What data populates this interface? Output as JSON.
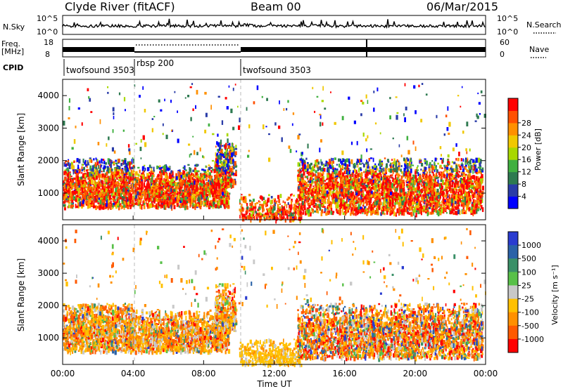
{
  "header": {
    "station": "Clyde River (fitACF)",
    "beam": "Beam 00",
    "date": "06/Mar/2015"
  },
  "strips": {
    "nsky_label": "N.Sky",
    "nsky_ticks": [
      "10^5",
      "10^0"
    ],
    "nsearch_label": "N.Search",
    "freq_label": "Freq.",
    "freq_unit": "[MHz]",
    "freq_ticks": [
      "18",
      "8"
    ],
    "nave_ticks": [
      "60",
      "0"
    ],
    "nave_label": "Nave",
    "cpid_label": "CPID",
    "cpid_segments": [
      {
        "label": "twofsound 3503",
        "start_hour": 0
      },
      {
        "label": "rbsp 200",
        "start_hour": 4
      },
      {
        "label": "twofsound 3503",
        "start_hour": 10
      }
    ]
  },
  "chart_data": [
    {
      "type": "heatmap",
      "name": "power-panel",
      "xlabel": "",
      "ylabel": "Slant Range [km]",
      "x_unit": "hours UT",
      "xlim": [
        0,
        24
      ],
      "ylim": [
        180,
        4500
      ],
      "yticks": [
        1000,
        2000,
        3000,
        4000
      ],
      "ytick_labels": [
        "1000",
        "2000",
        "3000",
        "4000"
      ],
      "colorbar": {
        "label": "Power [dB]",
        "ticks": [
          "4",
          "8",
          "12",
          "16",
          "20",
          "24",
          "28"
        ],
        "colors": [
          "#0000ff",
          "#2a3ca8",
          "#2e7a50",
          "#40b040",
          "#a8d800",
          "#f0c800",
          "#ff9000",
          "#ff5000",
          "#ff0000"
        ]
      }
    },
    {
      "type": "heatmap",
      "name": "velocity-panel",
      "xlabel": "Time UT",
      "ylabel": "Slant Range [km]",
      "x_unit": "hours UT",
      "xlim": [
        0,
        24
      ],
      "ylim": [
        180,
        4500
      ],
      "yticks": [
        1000,
        2000,
        3000,
        4000
      ],
      "ytick_labels": [
        "1000",
        "2000",
        "3000",
        "4000"
      ],
      "xticks": [
        0,
        4,
        8,
        12,
        16,
        20,
        24
      ],
      "xtick_labels": [
        "00:00",
        "04:00",
        "08:00",
        "12:00",
        "16:00",
        "20:00",
        "00:00"
      ],
      "colorbar": {
        "label": "Velocity [m s⁻¹]",
        "ticks": [
          "1000",
          "500",
          "100",
          "25",
          "-25",
          "-100",
          "-500",
          "-1000"
        ],
        "colors": [
          "#2a3cd0",
          "#2a62a8",
          "#3a9068",
          "#58c048",
          "#c8c8c8",
          "#ffc000",
          "#ff9000",
          "#ff5a00",
          "#ff0000"
        ]
      }
    }
  ]
}
